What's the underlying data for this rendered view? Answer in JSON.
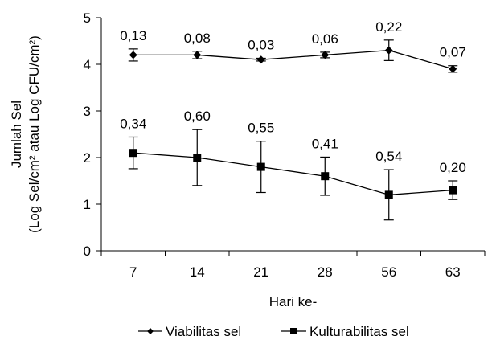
{
  "chart_data": {
    "type": "line",
    "xlabel": "Hari ke-",
    "ylabel_line1": "Jumlah Sel",
    "ylabel_line2": "(Log Sel/cm² atau Log CFU/cm²)",
    "categories": [
      "7",
      "14",
      "21",
      "28",
      "56",
      "63"
    ],
    "ylim": [
      0,
      5
    ],
    "yticks": [
      "0",
      "1",
      "2",
      "3",
      "4",
      "5"
    ],
    "grid": false,
    "legend_position": "bottom",
    "series": [
      {
        "name": "Viabilitas sel",
        "marker": "diamond",
        "values": [
          4.2,
          4.2,
          4.1,
          4.2,
          4.3,
          3.9
        ],
        "errors": [
          0.13,
          0.08,
          0.03,
          0.06,
          0.22,
          0.07
        ],
        "labels": [
          "0,13",
          "0,08",
          "0,03",
          "0,06",
          "0,22",
          "0,07"
        ]
      },
      {
        "name": "Kulturabilitas sel",
        "marker": "square",
        "values": [
          2.1,
          2.0,
          1.8,
          1.6,
          1.2,
          1.3
        ],
        "errors": [
          0.34,
          0.6,
          0.55,
          0.41,
          0.54,
          0.2
        ],
        "labels": [
          "0,34",
          "0,60",
          "0,55",
          "0,41",
          "0,54",
          "0,20"
        ]
      }
    ],
    "colors": {
      "line": "#000000",
      "background": "#ffffff"
    }
  }
}
